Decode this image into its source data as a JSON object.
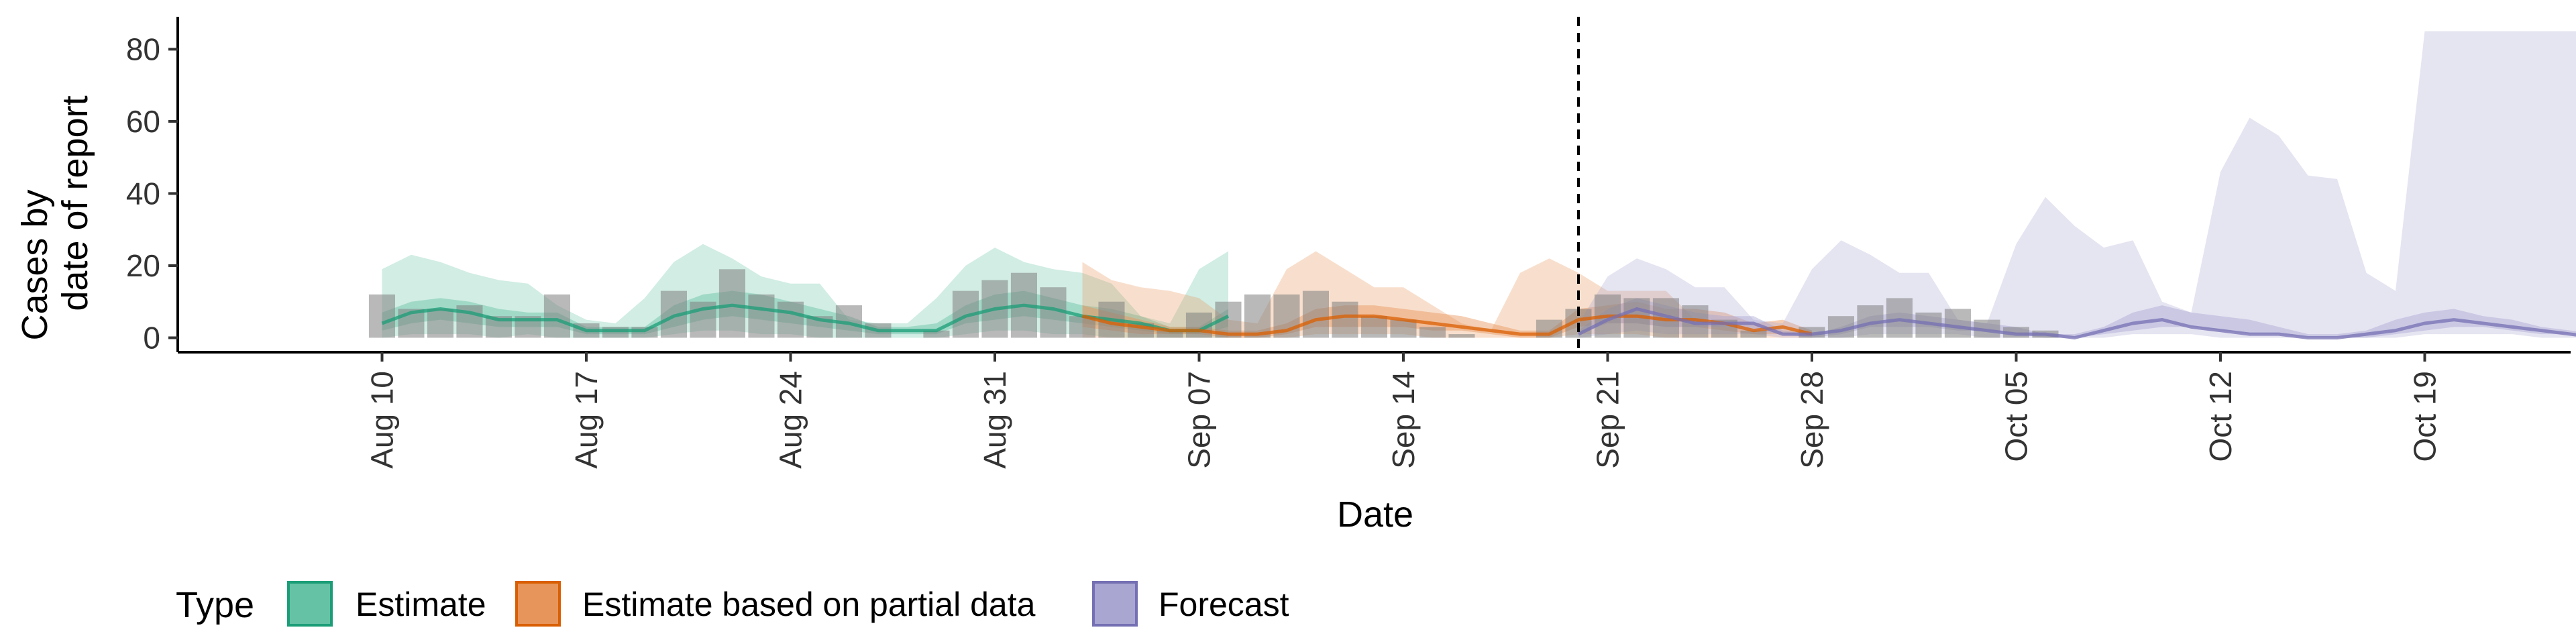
{
  "chart_data": {
    "type": "area",
    "ylabel": [
      "Cases by",
      "date of report"
    ],
    "xlabel": "Date",
    "ylim": [
      -4,
      89
    ],
    "yticks": [
      0,
      20,
      40,
      60,
      80
    ],
    "xlim": [
      "2020-08-03",
      "2020-10-24"
    ],
    "xticks": [
      {
        "date": "2020-08-10",
        "label": "Aug 10"
      },
      {
        "date": "2020-08-17",
        "label": "Aug 17"
      },
      {
        "date": "2020-08-24",
        "label": "Aug 24"
      },
      {
        "date": "2020-08-31",
        "label": "Aug 31"
      },
      {
        "date": "2020-09-07",
        "label": "Sep 07"
      },
      {
        "date": "2020-09-14",
        "label": "Sep 14"
      },
      {
        "date": "2020-09-21",
        "label": "Sep 21"
      },
      {
        "date": "2020-09-28",
        "label": "Sep 28"
      },
      {
        "date": "2020-10-05",
        "label": "Oct 05"
      },
      {
        "date": "2020-10-12",
        "label": "Oct 12"
      },
      {
        "date": "2020-10-19",
        "label": "Oct 19"
      }
    ],
    "forecast_cutoff_date": "2020-09-20",
    "legend": {
      "title": "Type",
      "position": "bottom",
      "entries": [
        {
          "name": "Estimate",
          "fill": "#66c2a5",
          "stroke": "#1b9e77"
        },
        {
          "name": "Estimate based on partial data",
          "fill": "#e8955b",
          "stroke": "#d95f02"
        },
        {
          "name": "Forecast",
          "fill": "#a9a6d2",
          "stroke": "#7570b3"
        }
      ]
    },
    "reported_cases": {
      "start_date": "2020-08-10",
      "values": [
        12,
        8,
        8,
        9,
        6,
        6,
        12,
        4,
        3,
        3,
        13,
        10,
        19,
        12,
        10,
        6,
        9,
        4,
        0,
        2,
        13,
        16,
        18,
        14,
        6,
        10,
        4,
        2,
        7,
        10,
        12,
        12,
        13,
        10,
        6,
        5,
        3,
        1,
        0,
        0,
        5,
        8,
        12,
        11,
        11,
        9,
        5,
        2,
        0,
        3,
        6,
        9,
        11,
        7,
        8,
        5,
        3,
        2
      ]
    },
    "series": [
      {
        "name": "Estimate",
        "start_date": "2020-08-10",
        "lower90": [
          0,
          1,
          1,
          1,
          0,
          1,
          0,
          0,
          0,
          0,
          1,
          2,
          2,
          1,
          1,
          0,
          0,
          0,
          0,
          0,
          1,
          2,
          2,
          1,
          1,
          0,
          0,
          0,
          0,
          0
        ],
        "lower50": [
          2,
          4,
          5,
          4,
          3,
          3,
          3,
          1,
          1,
          1,
          3,
          5,
          6,
          5,
          4,
          3,
          2,
          1,
          1,
          1,
          4,
          5,
          6,
          5,
          4,
          3,
          2,
          1,
          1,
          3
        ],
        "median": [
          4,
          7,
          8,
          7,
          5,
          5,
          5,
          2,
          2,
          2,
          6,
          8,
          9,
          8,
          7,
          5,
          4,
          2,
          2,
          2,
          6,
          8,
          9,
          8,
          6,
          5,
          4,
          2,
          2,
          6
        ],
        "upper50": [
          7,
          10,
          11,
          10,
          8,
          7,
          7,
          3,
          3,
          3,
          9,
          12,
          13,
          12,
          10,
          8,
          6,
          3,
          3,
          4,
          9,
          12,
          13,
          11,
          9,
          8,
          6,
          3,
          3,
          8
        ],
        "upper90": [
          19,
          23,
          21,
          18,
          16,
          15,
          9,
          5,
          4,
          11,
          21,
          26,
          22,
          17,
          15,
          15,
          5,
          4,
          4,
          11,
          20,
          25,
          21,
          19,
          18,
          15,
          6,
          4,
          19,
          24
        ]
      },
      {
        "name": "Estimate based on partial data",
        "start_date": "2020-09-03",
        "lower90": [
          0,
          0,
          0,
          0,
          0,
          0,
          0,
          0,
          1,
          1,
          1,
          1,
          0,
          0,
          0,
          0,
          0,
          1,
          1,
          1,
          0,
          0,
          0,
          0,
          0,
          0
        ],
        "lower50": [
          3,
          2,
          1,
          1,
          1,
          0,
          0,
          1,
          3,
          3,
          3,
          3,
          2,
          2,
          1,
          0,
          0,
          3,
          4,
          4,
          3,
          3,
          2,
          1,
          1,
          1
        ],
        "median": [
          6,
          4,
          3,
          2,
          2,
          1,
          1,
          2,
          5,
          6,
          6,
          5,
          4,
          3,
          2,
          1,
          1,
          5,
          6,
          6,
          5,
          5,
          4,
          2,
          3,
          1
        ],
        "upper50": [
          9,
          7,
          5,
          3,
          3,
          2,
          2,
          4,
          8,
          9,
          9,
          8,
          7,
          6,
          4,
          2,
          2,
          8,
          9,
          10,
          8,
          8,
          7,
          4,
          5,
          2
        ],
        "upper90": [
          21,
          16,
          14,
          13,
          11,
          5,
          4,
          19,
          24,
          19,
          14,
          14,
          9,
          4,
          2,
          18,
          22,
          18,
          13,
          13,
          13,
          5,
          3,
          2,
          2,
          2
        ]
      },
      {
        "name": "Forecast",
        "start_date": "2020-09-20",
        "lower90": [
          0,
          1,
          2,
          1,
          1,
          1,
          1,
          0,
          0,
          0,
          1,
          1,
          1,
          1,
          0,
          0,
          0,
          0,
          0,
          1,
          1,
          1,
          0,
          0,
          0,
          0,
          0,
          0,
          0,
          1,
          1,
          1,
          1,
          0,
          0,
          0,
          0,
          0,
          0
        ],
        "lower50": [
          1,
          4,
          4,
          3,
          3,
          3,
          2,
          1,
          0,
          1,
          3,
          3,
          3,
          2,
          2,
          1,
          0,
          0,
          1,
          2,
          3,
          3,
          2,
          1,
          1,
          0,
          0,
          0,
          1,
          2,
          3,
          3,
          2,
          1,
          1,
          0,
          0,
          0,
          0
        ],
        "median": [
          1,
          5,
          8,
          6,
          4,
          4,
          4,
          1,
          1,
          2,
          4,
          5,
          4,
          3,
          2,
          1,
          1,
          0,
          2,
          4,
          5,
          3,
          2,
          1,
          1,
          0,
          0,
          1,
          2,
          4,
          5,
          4,
          3,
          2,
          1,
          0,
          1,
          2,
          2
        ],
        "upper50": [
          2,
          8,
          11,
          9,
          7,
          6,
          6,
          2,
          1,
          3,
          6,
          7,
          6,
          5,
          4,
          3,
          1,
          1,
          3,
          7,
          9,
          7,
          6,
          5,
          3,
          1,
          1,
          2,
          5,
          7,
          8,
          6,
          5,
          3,
          2,
          1,
          1,
          3,
          6
        ],
        "upper90": [
          4,
          17,
          22,
          19,
          14,
          14,
          5,
          4,
          19,
          27,
          23,
          18,
          18,
          5,
          4,
          26,
          39,
          31,
          25,
          27,
          10,
          7,
          46,
          61,
          56,
          45,
          44,
          18,
          13,
          85,
          85,
          85,
          85,
          85,
          85,
          85,
          85,
          85,
          85
        ]
      }
    ]
  }
}
